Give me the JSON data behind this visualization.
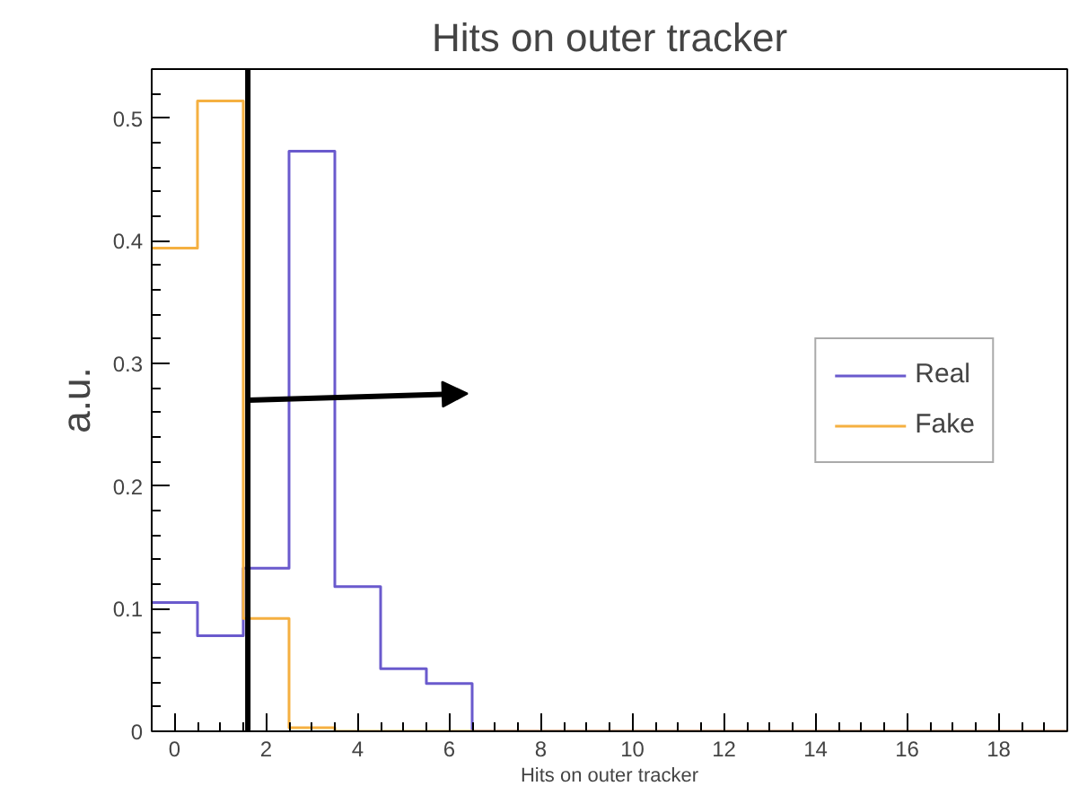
{
  "chart_data": {
    "type": "histogram",
    "title": "Hits on outer tracker",
    "xlabel": "Hits on outer tracker",
    "ylabel": "a.u.",
    "bins": [
      -0.5,
      0.5,
      1.5,
      2.5,
      3.5,
      4.5,
      5.5,
      6.5,
      7.5,
      8.5,
      9.5,
      10.5,
      11.5,
      12.5,
      13.5,
      14.5,
      15.5,
      16.5,
      17.5,
      18.5,
      19.5
    ],
    "series": [
      {
        "name": "Real",
        "color": "#6a5acd",
        "values": [
          0.105,
          0.078,
          0.133,
          0.473,
          0.118,
          0.051,
          0.039,
          0,
          0,
          0,
          0,
          0,
          0,
          0,
          0,
          0,
          0,
          0,
          0,
          0
        ]
      },
      {
        "name": "Fake",
        "color": "#f5b041",
        "values": [
          0.394,
          0.514,
          0.092,
          0.003,
          0,
          0,
          0,
          0,
          0,
          0,
          0,
          0,
          0,
          0,
          0,
          0,
          0,
          0,
          0,
          0
        ]
      }
    ],
    "xlim": [
      -0.5,
      19.5
    ],
    "ylim": [
      0,
      0.54
    ],
    "xticks": [
      0,
      2,
      4,
      6,
      8,
      10,
      12,
      14,
      16,
      18
    ],
    "yticks": [
      0,
      0.1,
      0.2,
      0.3,
      0.4,
      0.5
    ],
    "ref_lines": [
      {
        "axis": "x",
        "value": 1.6,
        "label": null,
        "color": "#000000"
      }
    ],
    "grid": false,
    "legend": "right",
    "marker": "none",
    "line_style": "solid"
  }
}
